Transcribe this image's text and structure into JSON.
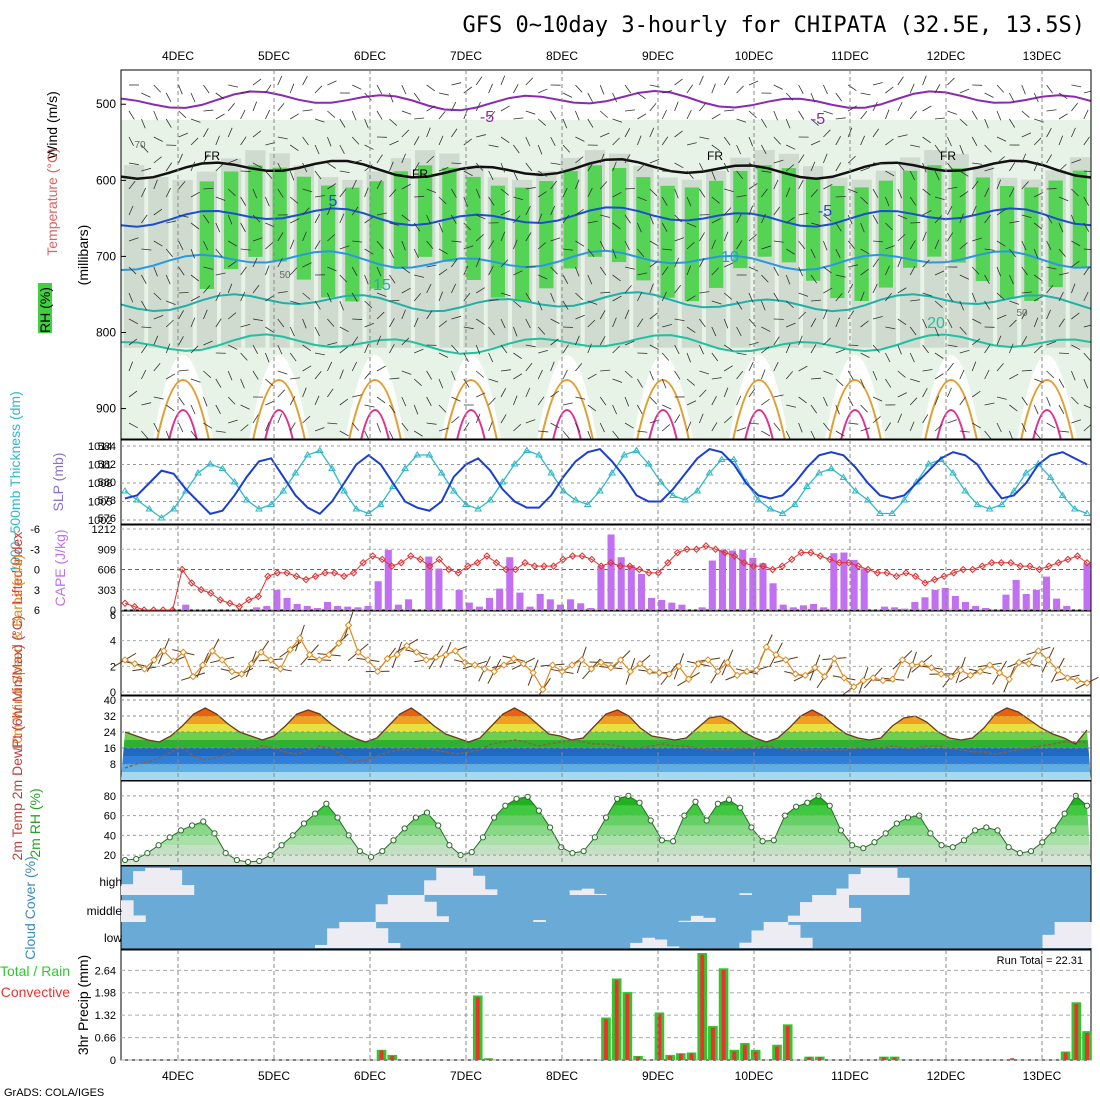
{
  "title": "GFS 0~10day 3-hourly for CHIPATA (32.5E, 13.5S)",
  "footer": "GrADS: COLA/IGES",
  "colors": {
    "rh_green": "#3fd13f",
    "rh_pale": "#e8f3e8",
    "rh_grey": "#c4d0c4",
    "slp": "#1a3fd0",
    "thickness": "#2fb8c8",
    "lifted_index": "#e03030",
    "cape": "#c070f0",
    "wind_speed": "#e08a20",
    "barb": "#5a3a1a",
    "cloud": "#6aaad6",
    "clear": "#ececf2",
    "total_precip": "#2ec82e",
    "convective": "#ee3030"
  },
  "chart_data": [
    {
      "panel": "cross-section",
      "type": "heatmap",
      "legend": "RH (%)",
      "ylabels": [
        "Wind (m/s)",
        "Temperature (°C)",
        "(millibars)"
      ],
      "yticks": [
        500,
        600,
        700,
        800,
        900
      ],
      "x": [
        "4DEC",
        "5DEC",
        "6DEC",
        "7DEC",
        "8DEC",
        "9DEC",
        "10DEC",
        "11DEC",
        "12DEC",
        "13DEC"
      ],
      "isotherm_labels": [
        "-5",
        "-5",
        "FR",
        "FR",
        "FR",
        "FR",
        "-5",
        "5",
        "10",
        "15",
        "20"
      ],
      "rh_labels": [
        "50",
        "50",
        "70"
      ],
      "isotherms": [
        {
          "name": "-5",
          "level_mb": 495
        },
        {
          "name": "FR",
          "level_mb": 585
        },
        {
          "name": "5",
          "level_mb": 648
        },
        {
          "name": "10",
          "level_mb": 705
        },
        {
          "name": "15",
          "level_mb": 760
        },
        {
          "name": "20",
          "level_mb": 815
        }
      ]
    },
    {
      "panel": "slp-thickness",
      "type": "line",
      "ylabel_left": "1000~500mb Thickness (dm)",
      "ylabel_right": "SLP (mb)",
      "yticks_left": [
        "584",
        "582",
        "580",
        "578",
        "576"
      ],
      "yticks_right": [
        "1014",
        "1011",
        "1008",
        "1005",
        "1002"
      ],
      "ylim_slp": [
        1002,
        1014
      ],
      "ylim_thickness": [
        576,
        584
      ],
      "series": [
        {
          "name": "SLP",
          "values": [
            1005.5,
            1006,
            1008,
            1010,
            1009.5,
            1007,
            1005,
            1003,
            1003.5,
            1006,
            1009,
            1011.5,
            1012,
            1009,
            1006,
            1004,
            1003,
            1005,
            1008,
            1011,
            1012.5,
            1011,
            1008,
            1005,
            1004,
            1003.5,
            1005,
            1009,
            1011,
            1012,
            1010,
            1007,
            1005,
            1004,
            1004,
            1006,
            1009,
            1011.5,
            1013,
            1013.5,
            1011.5,
            1009,
            1006,
            1005,
            1005,
            1007,
            1009.5,
            1012,
            1013.5,
            1013,
            1011,
            1008,
            1006,
            1005.5,
            1006,
            1008,
            1010.5,
            1012.5,
            1013,
            1012.5,
            1010.5,
            1008,
            1006,
            1005.5,
            1006,
            1008,
            1010,
            1012,
            1013,
            1012.5,
            1011,
            1008,
            1005.5,
            1006,
            1008,
            1011,
            1012.5,
            1013,
            1012,
            1011
          ]
        },
        {
          "name": "Thickness",
          "values": [
            579,
            578,
            577,
            576,
            577,
            579,
            581,
            582,
            581.5,
            580,
            578,
            577,
            577.5,
            579,
            581,
            583,
            583.5,
            581.5,
            579,
            577,
            576.5,
            577.5,
            579.5,
            581.5,
            583,
            583,
            581,
            579,
            577.5,
            577,
            578,
            580,
            582,
            583.5,
            583,
            581,
            579,
            578,
            577.5,
            579,
            581,
            583,
            583.5,
            582,
            580,
            578.5,
            578,
            579,
            581,
            582.5,
            582.5,
            580,
            578,
            577,
            576.5,
            577.5,
            579.5,
            581,
            581.5,
            580.5,
            579,
            578,
            576.5,
            576.5,
            578,
            580,
            582,
            582.5,
            581,
            579,
            577.5,
            577,
            577.5,
            579,
            581,
            582,
            580.5,
            578.5,
            577,
            576.5
          ]
        }
      ]
    },
    {
      "panel": "lifted-index-cape",
      "type": "bar",
      "ylabel_left": "Lifted Index",
      "ylabel_right": "CAPE (J/kg)",
      "yticks_left": [
        "-6",
        "-3",
        "0",
        "3",
        "6"
      ],
      "yticks_right": [
        "1212",
        "909",
        "606",
        "303",
        "0"
      ],
      "ylim_cape": [
        0,
        1212
      ],
      "series": [
        {
          "name": "CAPE",
          "values": [
            0,
            0,
            0,
            0,
            0,
            0,
            80,
            0,
            0,
            0,
            0,
            0,
            0,
            40,
            60,
            300,
            180,
            90,
            60,
            30,
            120,
            60,
            50,
            40,
            60,
            430,
            900,
            80,
            160,
            0,
            800,
            620,
            0,
            300,
            110,
            50,
            180,
            320,
            790,
            260,
            50,
            240,
            160,
            80,
            160,
            100,
            30,
            660,
            1130,
            790,
            670,
            540,
            180,
            150,
            110,
            80,
            0,
            40,
            740,
            900,
            890,
            900,
            780,
            700,
            400,
            80,
            40,
            70,
            90,
            40,
            850,
            860,
            750,
            620,
            0,
            50,
            40,
            20,
            120,
            190,
            300,
            330,
            210,
            120,
            60,
            30,
            0,
            230,
            450,
            240,
            300,
            500,
            170,
            60,
            0,
            700
          ]
        },
        {
          "name": "Lifted Index",
          "values": [
            5,
            5.5,
            6,
            6,
            6,
            6,
            0,
            2,
            3,
            3.5,
            4.5,
            5,
            5.5,
            4.5,
            4,
            1,
            0.5,
            0.5,
            1,
            1.5,
            1,
            0.5,
            0.5,
            1,
            0.5,
            -1,
            -2,
            -1.5,
            -0.5,
            -1,
            -2,
            -1.5,
            -0.5,
            -1.5,
            0,
            0.5,
            -0.5,
            -1,
            -2,
            -1,
            0,
            0,
            -1,
            -0.5,
            -0.5,
            -0.5,
            -1.5,
            -2,
            -2,
            -1.5,
            -0.5,
            -1,
            -0.5,
            -0.5,
            0,
            0.5,
            0.5,
            -1,
            -2.5,
            -3,
            -3,
            -3.5,
            -3,
            -2.5,
            -2,
            -1,
            -0.5,
            -0.5,
            0,
            -0.5,
            -1.5,
            -2.5,
            -2.5,
            -2,
            -1.5,
            -1,
            -1,
            -0.5,
            0,
            0.5,
            0.5,
            1,
            0.5,
            1,
            2,
            1.5,
            1,
            0.5,
            0,
            0,
            -0.5,
            -1,
            -1,
            -1,
            -0.5,
            -0.5,
            0,
            -0.5,
            -1,
            -1.5,
            -2,
            -1
          ]
        }
      ]
    },
    {
      "panel": "wind",
      "type": "line",
      "ylabel": "10m Wind Speed & Barbs (m/s)",
      "yticks": [
        "6",
        "4",
        "2",
        "0"
      ],
      "ylim": [
        0,
        6
      ],
      "series": [
        {
          "name": "Speed",
          "values": [
            2.5,
            2.2,
            1.8,
            2.5,
            3.2,
            2.4,
            3.1,
            1.2,
            2.1,
            3.2,
            2.5,
            1.6,
            1.4,
            2.2,
            3.1,
            2.5,
            1.8,
            3.3,
            4.2,
            2.9,
            2.5,
            2.9,
            3.8,
            5.2,
            3.1,
            2.5,
            1.6,
            2.6,
            2.9,
            3.6,
            3.1,
            2.5,
            2.7,
            2.9,
            3.2,
            2.3,
            2.1,
            1.8,
            1.6,
            2.1,
            2.6,
            2.2,
            1.5,
            0.2,
            2.1,
            1.6,
            2.1,
            2.5,
            1.8,
            2.3,
            1.9,
            2.5,
            1.6,
            2.2,
            1.6,
            1.5,
            1.4,
            2.0,
            1.0,
            2.2,
            2.5,
            1.6,
            2.3,
            1.3,
            1.6,
            1.7,
            3.5,
            2.9,
            2.5,
            1.4,
            1.3,
            1.9,
            1.2,
            2.6,
            1.1,
            0.4,
            0.9,
            1.1,
            0.9,
            1.0,
            2.5,
            2.1,
            2.2,
            1.9,
            1.4,
            1.2,
            1.7,
            1.3,
            1.6,
            2.1,
            1.5,
            1.0,
            2.3,
            2.2,
            3.2,
            2.5,
            1.7,
            1.1,
            0.9,
            0.7
          ]
        }
      ]
    },
    {
      "panel": "temperature",
      "type": "area",
      "ylabel": "2m Temp 2m DewPt (6hr Min/Max) (°C)",
      "yticks": [
        "40",
        "32",
        "24",
        "16",
        "8"
      ],
      "ylim": [
        0,
        42
      ],
      "series": [
        {
          "name": "Temp",
          "values": [
            24,
            22,
            20,
            19,
            22,
            27,
            33,
            36,
            33,
            28,
            24,
            22,
            20,
            22,
            27,
            33,
            35,
            33,
            28,
            24,
            21,
            19,
            21,
            27,
            33,
            36,
            32,
            27,
            23,
            21,
            19,
            21,
            27,
            33,
            36,
            33,
            28,
            23,
            22,
            20,
            21,
            27,
            33,
            35,
            32,
            26,
            22,
            21,
            20,
            21,
            26,
            31,
            32,
            29,
            24,
            21,
            19,
            21,
            26,
            32,
            35,
            32,
            27,
            23,
            21,
            20,
            21,
            27,
            31,
            32,
            29,
            24,
            21,
            20,
            21,
            26,
            33,
            36,
            34,
            30,
            26,
            23,
            21,
            18,
            25
          ]
        },
        {
          "name": "DewPt",
          "values": [
            6,
            8,
            9,
            11,
            14,
            16,
            12,
            10,
            11,
            13,
            16,
            15,
            17,
            16,
            14,
            13,
            15,
            17,
            16,
            12,
            9,
            10,
            12,
            14,
            15,
            15,
            16,
            15,
            14,
            13,
            14,
            15,
            18,
            19,
            20,
            19,
            17,
            18,
            19,
            20,
            19,
            18,
            18,
            17,
            16,
            16,
            17,
            18,
            17,
            17,
            16,
            15,
            15,
            15,
            16,
            16,
            17,
            16,
            15,
            15,
            15,
            15,
            15,
            15,
            16,
            16,
            16,
            17,
            16,
            16,
            17,
            17,
            16,
            15,
            14,
            14,
            13,
            14,
            15,
            16,
            17,
            18,
            19,
            19,
            19
          ]
        }
      ]
    },
    {
      "panel": "rh2m",
      "type": "area",
      "ylabel": "2m RH (%)",
      "yticks": [
        "80",
        "60",
        "40",
        "20"
      ],
      "ylim": [
        10,
        95
      ],
      "series": [
        {
          "name": "RH",
          "values": [
            15,
            16,
            22,
            30,
            38,
            45,
            50,
            54,
            42,
            22,
            15,
            13,
            14,
            20,
            30,
            40,
            52,
            62,
            72,
            58,
            40,
            24,
            18,
            24,
            35,
            47,
            58,
            63,
            50,
            30,
            20,
            23,
            38,
            58,
            70,
            77,
            79,
            65,
            48,
            28,
            22,
            24,
            38,
            58,
            77,
            80,
            73,
            55,
            35,
            34,
            60,
            74,
            55,
            72,
            76,
            68,
            48,
            34,
            35,
            60,
            69,
            73,
            80,
            70,
            45,
            30,
            27,
            33,
            42,
            52,
            58,
            60,
            42,
            30,
            28,
            35,
            45,
            48,
            45,
            28,
            22,
            24,
            33,
            45,
            62,
            80,
            70
          ]
        }
      ]
    },
    {
      "panel": "cloud-cover",
      "type": "heatmap",
      "ylabel": "Cloud Cover (%)",
      "rows": [
        "high",
        "middle",
        "low"
      ]
    },
    {
      "panel": "precip",
      "type": "bar",
      "ylabel": "3hr Precip (mm)",
      "left_labels": [
        "Total / Rain",
        "Convective"
      ],
      "run_total": "Run Total = 22.31",
      "yticks": [
        "2.64",
        "1.98",
        "1.32",
        "0.66",
        "0"
      ],
      "ylim": [
        0,
        3.15
      ],
      "series": [
        {
          "name": "Total",
          "values": [
            0,
            0,
            0,
            0,
            0,
            0,
            0,
            0,
            0,
            0,
            0,
            0,
            0,
            0,
            0,
            0,
            0,
            0,
            0,
            0,
            0,
            0,
            0,
            0,
            0.3,
            0.15,
            0,
            0,
            0,
            0,
            0,
            0,
            0,
            1.9,
            0.05,
            0,
            0,
            0,
            0,
            0,
            0,
            0,
            0,
            0,
            0,
            1.25,
            2.4,
            2.0,
            0.12,
            0,
            1.4,
            0.15,
            0.2,
            0.22,
            3.15,
            1.0,
            2.7,
            0.3,
            0.5,
            0.3,
            0,
            0.45,
            1.05,
            0,
            0.1,
            0.1,
            0,
            0,
            0,
            0,
            0,
            0.1,
            0.1,
            0,
            0,
            0,
            0,
            0,
            0,
            0,
            0,
            0,
            0,
            0,
            0,
            0,
            0,
            0,
            0.25,
            1.7,
            0.85
          ]
        },
        {
          "name": "Convective",
          "values": [
            0,
            0,
            0,
            0,
            0,
            0,
            0,
            0,
            0,
            0,
            0,
            0,
            0,
            0,
            0,
            0,
            0,
            0,
            0,
            0,
            0,
            0,
            0,
            0,
            0.28,
            0.12,
            0,
            0,
            0,
            0,
            0,
            0,
            0,
            1.85,
            0.04,
            0,
            0,
            0,
            0,
            0,
            0,
            0,
            0,
            0,
            0,
            1.2,
            2.35,
            1.95,
            0.1,
            0,
            1.35,
            0.12,
            0.18,
            0.2,
            3.1,
            0.95,
            2.65,
            0.25,
            0.45,
            0.25,
            0,
            0.4,
            1.0,
            0,
            0.08,
            0.08,
            0,
            0,
            0,
            0,
            0,
            0.08,
            0.08,
            0,
            0,
            0,
            0,
            0,
            0,
            0,
            0,
            0,
            0,
            0.05,
            0,
            0,
            0,
            0,
            0.22,
            1.65,
            0.8
          ]
        }
      ]
    }
  ]
}
